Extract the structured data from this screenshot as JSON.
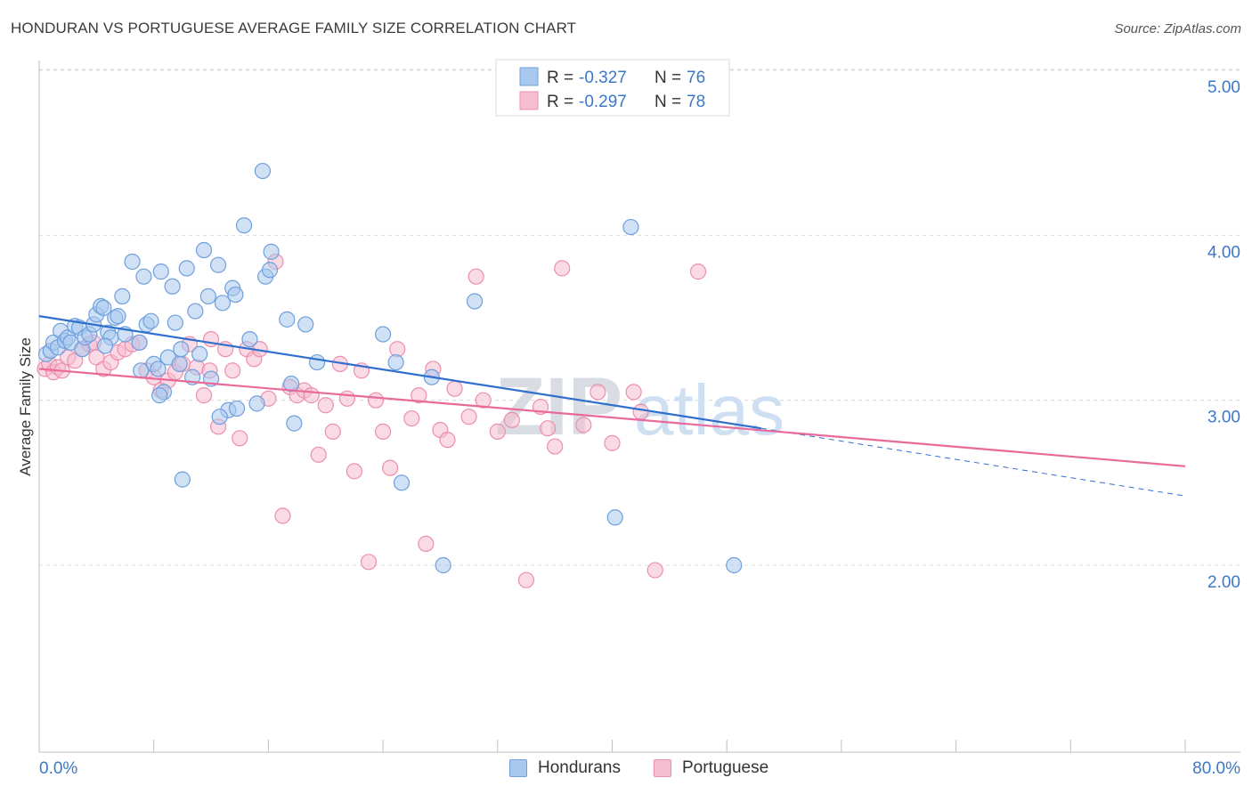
{
  "title": "HONDURAN VS PORTUGUESE AVERAGE FAMILY SIZE CORRELATION CHART",
  "source": "Source: ZipAtlas.com",
  "watermark": {
    "part1": "ZIP",
    "part2": "atlas"
  },
  "colors": {
    "blue_fill": "#a9c8ee",
    "blue_stroke": "#6f9fdc",
    "blue_line": "#2f6fce",
    "pink_fill": "#f6bccf",
    "pink_stroke": "#ec8fae",
    "pink_line": "#e8699a",
    "axis_label": "#3c78c8",
    "grid": "#dcdcdc"
  },
  "legend": [
    {
      "r_label": "R =",
      "r_value": "-0.327",
      "n_label": "N =",
      "n_value": "76"
    },
    {
      "r_label": "R =",
      "r_value": "-0.297",
      "n_label": "N =",
      "n_value": "78"
    }
  ],
  "bottom_legend": [
    "Hondurans",
    "Portuguese"
  ],
  "chart_data": {
    "type": "scatter",
    "ylabel": "Average Family Size",
    "xlim": [
      0,
      80
    ],
    "ylim": [
      1.0,
      5.15
    ],
    "x_tick_labels": {
      "left": "0.0%",
      "right": "80.0%"
    },
    "y_ticks": [
      {
        "value": 2.0,
        "label": "2.00"
      },
      {
        "value": 3.0,
        "label": "3.00"
      },
      {
        "value": 4.0,
        "label": "4.00"
      },
      {
        "value": 5.0,
        "label": "5.00"
      }
    ],
    "series": [
      {
        "name": "Hondurans",
        "trend": {
          "x0": 0,
          "y0": 3.51,
          "x1": 50.4,
          "y1": 2.83,
          "dash_x1": 80,
          "dash_y1": 2.42
        },
        "points": [
          [
            0.5,
            3.28
          ],
          [
            0.8,
            3.3
          ],
          [
            1.0,
            3.35
          ],
          [
            1.3,
            3.32
          ],
          [
            1.5,
            3.42
          ],
          [
            1.8,
            3.36
          ],
          [
            2.0,
            3.38
          ],
          [
            2.2,
            3.35
          ],
          [
            2.5,
            3.45
          ],
          [
            2.8,
            3.44
          ],
          [
            3.0,
            3.31
          ],
          [
            3.2,
            3.38
          ],
          [
            3.5,
            3.4
          ],
          [
            3.8,
            3.46
          ],
          [
            4.0,
            3.52
          ],
          [
            4.3,
            3.57
          ],
          [
            4.5,
            3.56
          ],
          [
            4.8,
            3.41
          ],
          [
            5.0,
            3.38
          ],
          [
            5.3,
            3.5
          ],
          [
            5.5,
            3.51
          ],
          [
            5.8,
            3.63
          ],
          [
            6.0,
            3.4
          ],
          [
            6.5,
            3.84
          ],
          [
            7.0,
            3.35
          ],
          [
            7.3,
            3.75
          ],
          [
            7.5,
            3.46
          ],
          [
            7.8,
            3.48
          ],
          [
            8.0,
            3.22
          ],
          [
            8.3,
            3.19
          ],
          [
            8.5,
            3.78
          ],
          [
            8.7,
            3.05
          ],
          [
            9.0,
            3.26
          ],
          [
            9.3,
            3.69
          ],
          [
            9.5,
            3.47
          ],
          [
            9.8,
            3.22
          ],
          [
            10.0,
            2.52
          ],
          [
            10.3,
            3.8
          ],
          [
            10.7,
            3.14
          ],
          [
            10.9,
            3.54
          ],
          [
            11.2,
            3.28
          ],
          [
            11.5,
            3.91
          ],
          [
            11.8,
            3.63
          ],
          [
            12.0,
            3.13
          ],
          [
            12.5,
            3.82
          ],
          [
            12.8,
            3.59
          ],
          [
            13.2,
            2.94
          ],
          [
            13.5,
            3.68
          ],
          [
            13.7,
            3.64
          ],
          [
            14.3,
            4.06
          ],
          [
            14.7,
            3.37
          ],
          [
            15.2,
            2.98
          ],
          [
            15.6,
            4.39
          ],
          [
            15.8,
            3.75
          ],
          [
            16.2,
            3.9
          ],
          [
            17.3,
            3.49
          ],
          [
            17.6,
            3.1
          ],
          [
            17.8,
            2.86
          ],
          [
            18.6,
            3.46
          ],
          [
            19.4,
            3.23
          ],
          [
            24.0,
            3.4
          ],
          [
            24.9,
            3.23
          ],
          [
            25.3,
            2.5
          ],
          [
            27.4,
            3.14
          ],
          [
            28.2,
            2.0
          ],
          [
            30.4,
            3.6
          ],
          [
            40.2,
            2.29
          ],
          [
            41.3,
            4.05
          ],
          [
            48.5,
            2.0
          ],
          [
            13.8,
            2.95
          ],
          [
            8.4,
            3.03
          ],
          [
            16.1,
            3.79
          ],
          [
            12.6,
            2.9
          ],
          [
            4.6,
            3.33
          ],
          [
            7.1,
            3.18
          ],
          [
            9.9,
            3.31
          ]
        ]
      },
      {
        "name": "Portuguese",
        "trend": {
          "x0": 0,
          "y0": 3.19,
          "x1": 80,
          "y1": 2.6
        },
        "points": [
          [
            0.4,
            3.19
          ],
          [
            0.7,
            3.22
          ],
          [
            1.0,
            3.17
          ],
          [
            1.3,
            3.2
          ],
          [
            1.6,
            3.18
          ],
          [
            2.0,
            3.26
          ],
          [
            2.5,
            3.24
          ],
          [
            3.0,
            3.31
          ],
          [
            3.5,
            3.34
          ],
          [
            4.0,
            3.26
          ],
          [
            4.5,
            3.19
          ],
          [
            5.0,
            3.23
          ],
          [
            5.5,
            3.29
          ],
          [
            6.0,
            3.31
          ],
          [
            6.5,
            3.34
          ],
          [
            7.0,
            3.35
          ],
          [
            7.5,
            3.18
          ],
          [
            8.0,
            3.14
          ],
          [
            8.5,
            3.06
          ],
          [
            9.0,
            3.12
          ],
          [
            9.5,
            3.17
          ],
          [
            10.0,
            3.22
          ],
          [
            10.5,
            3.34
          ],
          [
            11.0,
            3.2
          ],
          [
            11.5,
            3.03
          ],
          [
            12.0,
            3.37
          ],
          [
            12.5,
            2.84
          ],
          [
            13.0,
            3.31
          ],
          [
            13.5,
            3.18
          ],
          [
            14.0,
            2.77
          ],
          [
            14.5,
            3.31
          ],
          [
            15.0,
            3.25
          ],
          [
            16.0,
            3.01
          ],
          [
            16.5,
            3.84
          ],
          [
            17.0,
            2.3
          ],
          [
            17.5,
            3.08
          ],
          [
            18.0,
            3.03
          ],
          [
            18.5,
            3.06
          ],
          [
            19.0,
            3.03
          ],
          [
            19.5,
            2.67
          ],
          [
            20.0,
            2.97
          ],
          [
            20.5,
            2.81
          ],
          [
            21.0,
            3.22
          ],
          [
            21.5,
            3.01
          ],
          [
            22.0,
            2.57
          ],
          [
            22.5,
            3.18
          ],
          [
            23.0,
            2.02
          ],
          [
            23.5,
            3.0
          ],
          [
            24.0,
            2.81
          ],
          [
            24.5,
            2.59
          ],
          [
            25.0,
            3.31
          ],
          [
            26.0,
            2.89
          ],
          [
            26.5,
            3.03
          ],
          [
            27.0,
            2.13
          ],
          [
            27.5,
            3.19
          ],
          [
            28.0,
            2.82
          ],
          [
            28.5,
            2.76
          ],
          [
            29.0,
            3.07
          ],
          [
            30.0,
            2.9
          ],
          [
            30.5,
            3.75
          ],
          [
            31.0,
            3.0
          ],
          [
            32.0,
            2.81
          ],
          [
            33.0,
            2.88
          ],
          [
            34.0,
            1.91
          ],
          [
            35.0,
            2.96
          ],
          [
            35.5,
            2.83
          ],
          [
            36.0,
            2.72
          ],
          [
            36.5,
            3.8
          ],
          [
            38.0,
            2.85
          ],
          [
            39.0,
            3.05
          ],
          [
            40.0,
            2.74
          ],
          [
            41.5,
            3.05
          ],
          [
            42.0,
            2.93
          ],
          [
            43.0,
            1.97
          ],
          [
            46.0,
            3.78
          ],
          [
            3.8,
            3.35
          ],
          [
            11.9,
            3.18
          ],
          [
            15.4,
            3.31
          ]
        ]
      }
    ]
  }
}
